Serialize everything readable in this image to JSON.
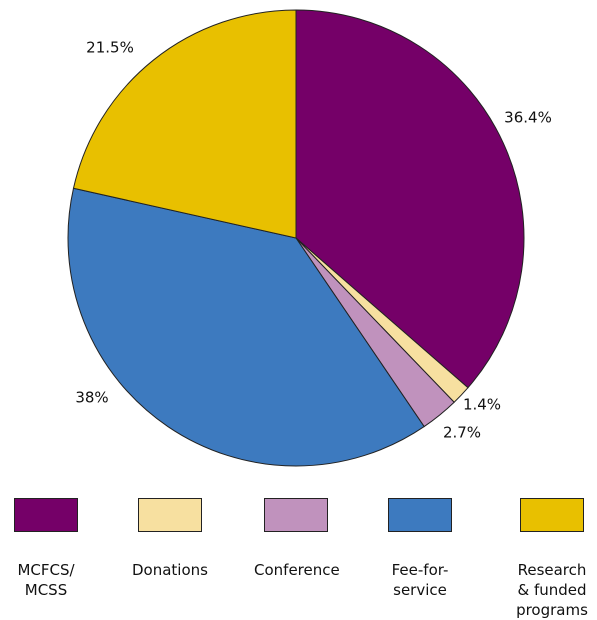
{
  "chart_data": {
    "type": "pie",
    "categories": [
      "MCFCS/ MCSS",
      "Donations",
      "Conference",
      "Fee-for- service",
      "Research & funded programs"
    ],
    "values": [
      36.4,
      1.4,
      2.7,
      38,
      21.5
    ],
    "value_labels": [
      "36.4%",
      "1.4%",
      "2.7%",
      "38%",
      "21.5%"
    ],
    "colors": [
      "#750068",
      "#f7e0a0",
      "#c092bd",
      "#3d7abf",
      "#e8c000"
    ]
  }
}
